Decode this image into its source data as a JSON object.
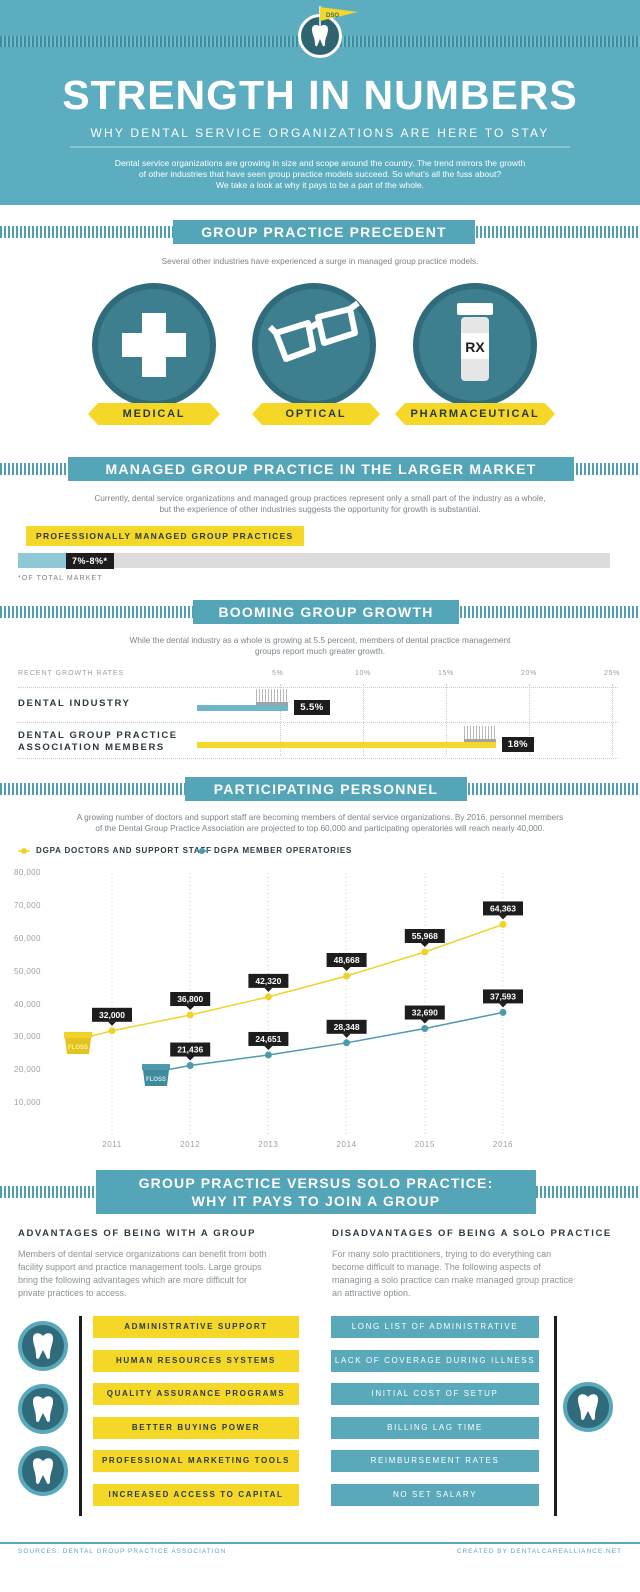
{
  "header": {
    "badge_text": "DSO",
    "title": "STRENGTH IN NUMBERS",
    "subtitle": "WHY DENTAL SERVICE ORGANIZATIONS ARE HERE TO STAY",
    "intro_lines": [
      "Dental service organizations are growing in size and scope around the country. The trend mirrors the growth",
      "of other industries that have seen group practice models succeed. So what's all the fuss about?",
      "We take a look at why it pays to be a part of the whole."
    ]
  },
  "precedent": {
    "title": "GROUP PRACTICE PRECEDENT",
    "intro": "Several other industries have experienced a surge in managed group practice models.",
    "industries": [
      {
        "label": "MEDICAL",
        "icon": "medical-cross-icon"
      },
      {
        "label": "OPTICAL",
        "icon": "eyeglasses-icon"
      },
      {
        "label": "PHARMACEUTICAL",
        "icon": "pill-bottle-icon",
        "icon_text": "RX"
      }
    ]
  },
  "market": {
    "title": "MANAGED GROUP PRACTICE IN THE LARGER MARKET",
    "intro_lines": [
      "Currently, dental service organizations and managed group practices represent only a small part of the industry as a whole,",
      "but the experience of other industries suggests the opportunity for growth is substantial."
    ],
    "bar_label": "PROFESSIONALLY MANAGED GROUP PRACTICES",
    "value_label": "7%-8%*",
    "share_fraction": 0.075,
    "footnote": "*OF TOTAL MARKET"
  },
  "growth": {
    "title": "BOOMING GROUP GROWTH",
    "intro_lines": [
      "While the dental industry as a whole is growing at 5.5 percent, members of dental practice management",
      "groups report much greater growth."
    ],
    "axis_label": "RECENT GROWTH RATES",
    "ticks": [
      "5%",
      "10%",
      "15%",
      "20%",
      "25%"
    ],
    "rows": [
      {
        "label_lines": [
          "DENTAL INDUSTRY"
        ],
        "value": 5.5,
        "value_label": "5.5%",
        "color": "#6fb6c6"
      },
      {
        "label_lines": [
          "DENTAL GROUP PRACTICE",
          "ASSOCIATION MEMBERS"
        ],
        "value": 18,
        "value_label": "18%",
        "color": "#f5d827"
      }
    ]
  },
  "personnel": {
    "title": "PARTICIPATING PERSONNEL",
    "intro_lines": [
      "A growing number of doctors and support staff are becoming members of dental service organizations. By 2016, personnel members",
      "of the Dental Group Practice Association are projected to top 60,000 and participating operatories will reach nearly 40,000."
    ],
    "floss_label": "FLOSS"
  },
  "chart_data": {
    "type": "line",
    "x": [
      "2011",
      "2012",
      "2013",
      "2014",
      "2015",
      "2016"
    ],
    "y_ticks": [
      "10,000",
      "20,000",
      "30,000",
      "40,000",
      "50,000",
      "60,000",
      "70,000",
      "80,000"
    ],
    "ylim": [
      0,
      80000
    ],
    "series": [
      {
        "name": "DGPA DOCTORS AND SUPPORT STAFF",
        "color": "#f0d22a",
        "values": [
          32000,
          36800,
          42320,
          48668,
          55968,
          64363
        ],
        "labels": [
          "32,000",
          "36,800",
          "42,320",
          "48,668",
          "55,968",
          "64,363"
        ]
      },
      {
        "name": "DGPA MEMBER OPERATORIES",
        "color": "#4d9aad",
        "values": [
          null,
          21436,
          24651,
          28348,
          32690,
          37593
        ],
        "labels": [
          "",
          "21,436",
          "24,651",
          "28,348",
          "32,690",
          "37,593"
        ]
      }
    ],
    "legend": "top-left"
  },
  "comparison": {
    "title_line1": "GROUP PRACTICE VERSUS SOLO PRACTICE:",
    "title_line2": "WHY IT PAYS TO JOIN A GROUP",
    "advantages_heading": "ADVANTAGES OF BEING WITH A GROUP",
    "advantages_text_lines": [
      "Members of dental service organizations can benefit from both",
      "facility support and practice management tools. Large groups",
      "bring the following advantages which are more difficult for",
      "private practices to access."
    ],
    "disadvantages_heading": "DISADVANTAGES OF BEING A SOLO PRACTICE",
    "disadvantages_text_lines": [
      "For many solo practitioners, trying to do everything can",
      "become difficult to manage. The following aspects of",
      "managing a solo practice can make managed group practice",
      "an attractive option."
    ],
    "advantages": [
      "ADMINISTRATIVE SUPPORT",
      "HUMAN RESOURCES SYSTEMS",
      "QUALITY ASSURANCE PROGRAMS",
      "BETTER BUYING POWER",
      "PROFESSIONAL MARKETING TOOLS",
      "INCREASED ACCESS TO CAPITAL"
    ],
    "disadvantages": [
      "LONG LIST OF ADMINISTRATIVE DUTIES",
      "LACK OF COVERAGE DURING ILLNESS",
      "INITIAL COST OF SETUP",
      "BILLING LAG TIME",
      "REIMBURSEMENT RATES",
      "NO SET SALARY"
    ]
  },
  "footer": {
    "sources": "SOURCES: DENTAL GROUP PRACTICE ASSOCIATION",
    "credit": "CREATED BY DENTALCAREALLIANCE.NET"
  },
  "colors": {
    "teal": "#5badbf",
    "dark_teal": "#2f6b7a",
    "yellow": "#f5d827",
    "black": "#1d1d1d"
  }
}
